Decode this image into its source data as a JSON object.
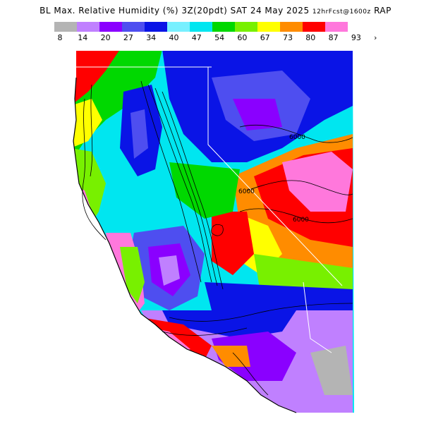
{
  "title": {
    "main": "BL Max. Relative Humidity (%) 3Z(20pdt) SAT 24 May 2025",
    "small": "12hrFcst@1600z",
    "model": "RAP"
  },
  "legend": {
    "ticks": [
      "8",
      "14",
      "20",
      "27",
      "34",
      "40",
      "47",
      "54",
      "60",
      "67",
      "73",
      "80",
      "87",
      "93"
    ],
    "more_marker": "›",
    "colors": [
      "#b4b4b4",
      "#c080ff",
      "#8a00ff",
      "#4e4ef0",
      "#0a14e6",
      "#78f0ff",
      "#00e6f0",
      "#00d800",
      "#78f000",
      "#ffff00",
      "#ff8c00",
      "#ff0000",
      "#ff78dc"
    ]
  },
  "map_labels": {
    "contour_a": "6000",
    "contour_b": "6000",
    "contour_c": "6000"
  }
}
